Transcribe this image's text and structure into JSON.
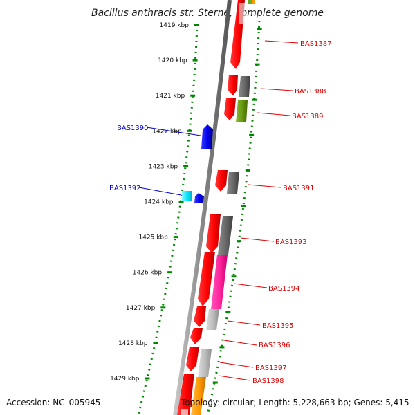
{
  "title": "Bacillus anthracis str. Sterne, complete genome",
  "footer": {
    "accession": "Accession: NC_005945",
    "summary": "Topology: circular; Length: 5,228,663 bp; Genes: 5,415"
  },
  "ticks": [
    {
      "kbp": 1419,
      "label": "1419 kbp"
    },
    {
      "kbp": 1420,
      "label": "1420 kbp"
    },
    {
      "kbp": 1421,
      "label": "1421 kbp"
    },
    {
      "kbp": 1422,
      "label": "1422 kbp"
    },
    {
      "kbp": 1423,
      "label": "1423 kbp"
    },
    {
      "kbp": 1424,
      "label": "1424 kbp"
    },
    {
      "kbp": 1425,
      "label": "1425 kbp"
    },
    {
      "kbp": 1426,
      "label": "1426 kbp"
    },
    {
      "kbp": 1427,
      "label": "1427 kbp"
    },
    {
      "kbp": 1428,
      "label": "1428 kbp"
    },
    {
      "kbp": 1429,
      "label": "1429 kbp"
    }
  ],
  "genes": [
    {
      "name": "BAS1387",
      "side": "right",
      "color": "#dd0000"
    },
    {
      "name": "BAS1388",
      "side": "right",
      "color": "#dd0000"
    },
    {
      "name": "BAS1389",
      "side": "right",
      "color": "#dd0000"
    },
    {
      "name": "BAS1390",
      "side": "left",
      "color": "#0000cc"
    },
    {
      "name": "BAS1391",
      "side": "right",
      "color": "#dd0000"
    },
    {
      "name": "BAS1392",
      "side": "left",
      "color": "#0000cc"
    },
    {
      "name": "BAS1393",
      "side": "right",
      "color": "#dd0000"
    },
    {
      "name": "BAS1394",
      "side": "right",
      "color": "#dd0000"
    },
    {
      "name": "BAS1395",
      "side": "right",
      "color": "#dd0000"
    },
    {
      "name": "BAS1396",
      "side": "right",
      "color": "#dd0000"
    },
    {
      "name": "BAS1397",
      "side": "right",
      "color": "#dd0000"
    },
    {
      "name": "BAS1398",
      "side": "right",
      "color": "#dd0000"
    }
  ],
  "colors": {
    "forward_gene": "#ff0000",
    "reverse_gene": "#0000ee",
    "cog_gray": "#666666",
    "cog_light_gray": "#bbbbbb",
    "cog_olive": "#669911",
    "cog_magenta": "#ff2299",
    "cog_cyan": "#00e5ff",
    "cog_orange": "#ff9900",
    "tick_green": "#008800",
    "backbone": "#888888"
  }
}
